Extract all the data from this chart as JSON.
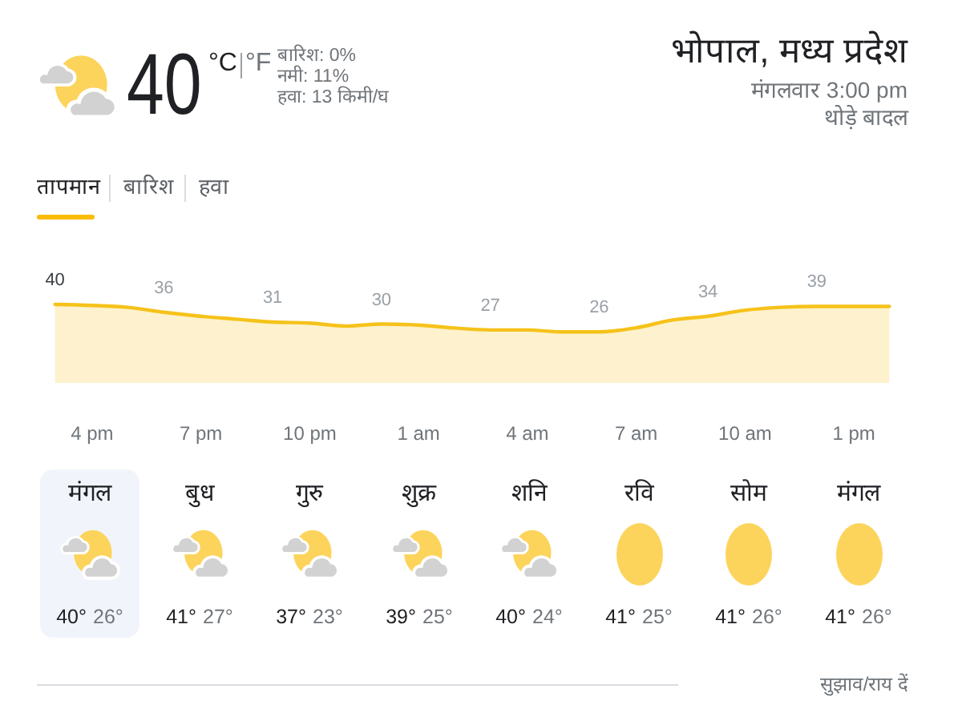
{
  "chart_data": [
    {
      "type": "other",
      "title": "भोपाल, मध्य प्रदेश",
      "subtitle": "मंगलवार 3:00 pm",
      "annotations": [
        "थोड़े बादल",
        "40",
        "°C",
        "°F",
        "बारिश: 0%",
        "नमी: 11%",
        "हवा: 13 किमी/घ",
        "तापमान",
        "बारिश",
        "हवा"
      ]
    },
    {
      "type": "area",
      "categories": [
        null,
        "4 pm",
        null,
        null,
        "7 pm",
        null,
        null,
        "10 pm",
        null,
        null,
        "1 am",
        null,
        null,
        "4 am",
        null,
        null,
        "7 am",
        null,
        null,
        "10 am",
        null,
        null,
        "1 pm",
        null
      ],
      "values": [
        40,
        39.5,
        38.5,
        36,
        34,
        32.5,
        31,
        30.5,
        29,
        30,
        29.5,
        28,
        27,
        27,
        26,
        26,
        28,
        32,
        34,
        37,
        38.5,
        39,
        39,
        39
      ],
      "value_labels": [
        "40",
        null,
        null,
        "36",
        null,
        null,
        "31",
        null,
        null,
        "30",
        null,
        null,
        "27",
        null,
        null,
        "26",
        null,
        null,
        "34",
        null,
        null,
        "39",
        null,
        null
      ],
      "color": "#f6c21a",
      "tick_labels": "x"
    },
    {
      "type": "other",
      "categories": [
        "मंगल",
        "बुध",
        "गुरु",
        "शुक्र",
        "शनि",
        "रवि",
        "सोम",
        "मंगल"
      ],
      "annotations": [
        "40°",
        "26°",
        "41°",
        "27°",
        "37°",
        "23°",
        "39°",
        "25°",
        "40°",
        "24°",
        "41°",
        "25°",
        "41°",
        "26°",
        "41°",
        "26°",
        "सुझाव/राय दें"
      ]
    }
  ]
}
